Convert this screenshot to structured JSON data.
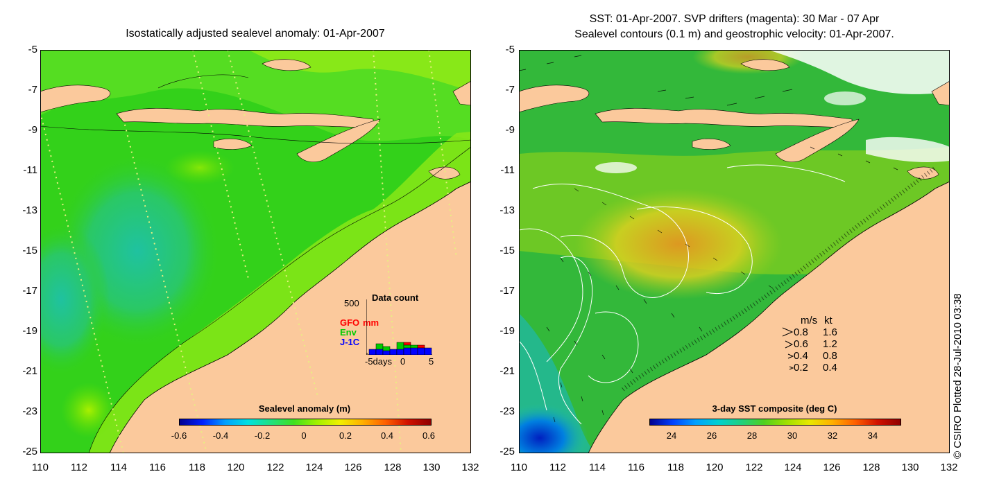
{
  "left_panel": {
    "title": "Isostatically adjusted sealevel anomaly: 01-Apr-2007",
    "colorbar_title": "Sealevel anomaly (m)",
    "colorbar_ticks": [
      "-0.6",
      "-0.4",
      "-0.2",
      "0",
      "0.2",
      "0.4",
      "0.6"
    ],
    "data_count": {
      "title": "Data count",
      "ymax_label": "500",
      "xlabel": "-5days",
      "xticks": [
        "0",
        "5"
      ],
      "legend": [
        {
          "label": "GFO",
          "color": "#ff0000"
        },
        {
          "label": "mm",
          "color": "#ff0000"
        },
        {
          "label": "Env",
          "color": "#00cc00"
        },
        {
          "label": "J-1C",
          "color": "#0000ff"
        }
      ]
    }
  },
  "right_panel": {
    "title_line1": "SST: 01-Apr-2007. SVP drifters (magenta): 30 Mar - 07 Apr",
    "title_line2": "Sealevel contours (0.1 m) and geostrophic velocity: 01-Apr-2007.",
    "colorbar_title": "3-day SST composite (deg C)",
    "colorbar_ticks": [
      "24",
      "26",
      "28",
      "30",
      "32",
      "34"
    ],
    "velocity_legend": {
      "header_ms": "m/s",
      "header_kt": "kt",
      "rows": [
        {
          "ms": "0.8",
          "kt": "1.6"
        },
        {
          "ms": "0.6",
          "kt": "1.2"
        },
        {
          "ms": "0.4",
          "kt": "0.8"
        },
        {
          "ms": "0.2",
          "kt": "0.4"
        }
      ]
    },
    "credit": "© CSIRO Plotted 28-Jul-2010 03:38"
  },
  "axes": {
    "y_ticks": [
      "-5",
      "-7",
      "-9",
      "-11",
      "-13",
      "-15",
      "-17",
      "-19",
      "-21",
      "-23",
      "-25"
    ],
    "x_ticks": [
      "110",
      "112",
      "114",
      "116",
      "118",
      "120",
      "122",
      "124",
      "126",
      "128",
      "130",
      "132"
    ]
  },
  "colors": {
    "land": "#fbc99c",
    "ocean_base": "#33d11a",
    "sst_base": "#33b83a"
  }
}
